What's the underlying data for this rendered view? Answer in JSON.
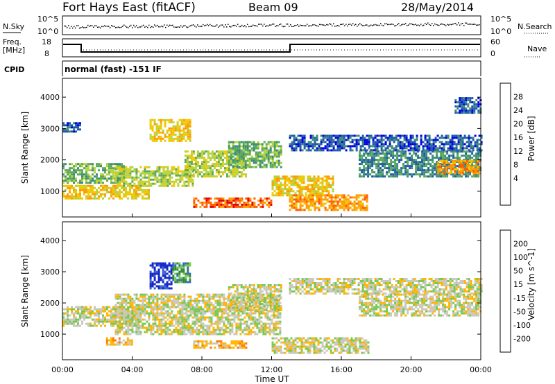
{
  "header": {
    "title": "Fort Hays East (fitACF)",
    "beam": "Beam 09",
    "date": "28/May/2014"
  },
  "panel_labels": {
    "nsky": "N.Sky",
    "nsky_ticks": [
      "10^5",
      "10^0"
    ],
    "nsearch": "N.Search",
    "nsearch_ticks": [
      "10^5",
      "10^0"
    ],
    "freq_label_1": "Freq.",
    "freq_label_2": "[MHz]",
    "freq_ticks": [
      "18",
      "8"
    ],
    "nave": "Nave",
    "nave_ticks": [
      "60",
      "0"
    ],
    "cpid": "CPID",
    "cpid_text": "normal (fast) -151 IF"
  },
  "chart_data": [
    {
      "type": "heatmap",
      "name": "power",
      "ylabel": "Slant Range [km]",
      "xlabel": "Time UT",
      "x_ticks": [
        "00:00",
        "04:00",
        "08:00",
        "12:00",
        "16:00",
        "20:00",
        "00:00"
      ],
      "x_range_hours": [
        0,
        24
      ],
      "y_ticks": [
        1000,
        2000,
        3000,
        4000
      ],
      "ylim": [
        180,
        4600
      ],
      "colorbar_label": "Power [dB]",
      "colorbar_ticks": [
        "28",
        "24",
        "20",
        "16",
        "12",
        "8",
        "4"
      ],
      "colorbar_colors": [
        "#e10000",
        "#ff5a00",
        "#ff9a00",
        "#f0c800",
        "#b4d23c",
        "#5aaa5a",
        "#3c8c78",
        "#1e5aaa",
        "#0000e6"
      ],
      "bands": [
        {
          "t0": 0.0,
          "t1": 3.5,
          "r0": 1300,
          "r1": 1900,
          "level": 5
        },
        {
          "t0": 0.0,
          "t1": 5.0,
          "r0": 800,
          "r1": 1200,
          "level": 3
        },
        {
          "t0": 3.0,
          "t1": 7.5,
          "r0": 1200,
          "r1": 1800,
          "level": 4
        },
        {
          "t0": 5.0,
          "t1": 7.3,
          "r0": 2600,
          "r1": 3300,
          "level": 3
        },
        {
          "t0": 7.0,
          "t1": 10.5,
          "r0": 1500,
          "r1": 2300,
          "level": 4
        },
        {
          "t0": 7.5,
          "t1": 12.0,
          "r0": 500,
          "r1": 800,
          "level": 1
        },
        {
          "t0": 9.5,
          "t1": 12.5,
          "r0": 1800,
          "r1": 2600,
          "level": 5
        },
        {
          "t0": 12.0,
          "t1": 15.5,
          "r0": 900,
          "r1": 1500,
          "level": 3
        },
        {
          "t0": 13.0,
          "t1": 17.5,
          "r0": 400,
          "r1": 900,
          "level": 2
        },
        {
          "t0": 13.0,
          "t1": 24.0,
          "r0": 2300,
          "r1": 2800,
          "level": 7
        },
        {
          "t0": 17.0,
          "t1": 24.0,
          "r0": 1500,
          "r1": 2300,
          "level": 6
        },
        {
          "t0": 21.5,
          "t1": 24.0,
          "r0": 1600,
          "r1": 2000,
          "level": 2
        },
        {
          "t0": 0.0,
          "t1": 1.0,
          "r0": 2900,
          "r1": 3200,
          "level": 7
        },
        {
          "t0": 22.5,
          "t1": 24.0,
          "r0": 3500,
          "r1": 4000,
          "level": 7
        }
      ]
    },
    {
      "type": "heatmap",
      "name": "velocity",
      "ylabel": "Slant Range [km]",
      "xlabel": "Time UT",
      "x_ticks": [
        "00:00",
        "04:00",
        "08:00",
        "12:00",
        "16:00",
        "20:00",
        "00:00"
      ],
      "x_range_hours": [
        0,
        24
      ],
      "y_ticks": [
        1000,
        2000,
        3000,
        4000
      ],
      "ylim": [
        180,
        4600
      ],
      "colorbar_label": "Velocity [m s^-1]",
      "colorbar_ticks": [
        "200",
        "100",
        "50",
        "15",
        "-15",
        "-50",
        "-100",
        "-200"
      ],
      "colorbar_colors": [
        "#1428c8",
        "#3c64d2",
        "#2d8c3c",
        "#78c850",
        "#c8c8be",
        "#ffb400",
        "#ff7800",
        "#ff3200",
        "#dc0000"
      ],
      "bands": [
        {
          "t0": 0.0,
          "t1": 4.5,
          "r0": 1300,
          "r1": 1900,
          "level": 4
        },
        {
          "t0": 3.0,
          "t1": 12.5,
          "r0": 1000,
          "r1": 2300,
          "level": 4
        },
        {
          "t0": 9.5,
          "t1": 12.5,
          "r0": 1800,
          "r1": 2600,
          "level": 4
        },
        {
          "t0": 5.0,
          "t1": 6.3,
          "r0": 2500,
          "r1": 3300,
          "level": 0
        },
        {
          "t0": 6.3,
          "t1": 7.3,
          "r0": 2700,
          "r1": 3300,
          "level": 2
        },
        {
          "t0": 7.5,
          "t1": 10.5,
          "r0": 600,
          "r1": 800,
          "level": 5
        },
        {
          "t0": 2.5,
          "t1": 4.0,
          "r0": 700,
          "r1": 900,
          "level": 5
        },
        {
          "t0": 12.0,
          "t1": 17.5,
          "r0": 400,
          "r1": 900,
          "level": 4
        },
        {
          "t0": 13.0,
          "t1": 24.0,
          "r0": 2300,
          "r1": 2800,
          "level": 4
        },
        {
          "t0": 17.0,
          "t1": 24.0,
          "r0": 1600,
          "r1": 2300,
          "level": 4
        }
      ]
    }
  ]
}
